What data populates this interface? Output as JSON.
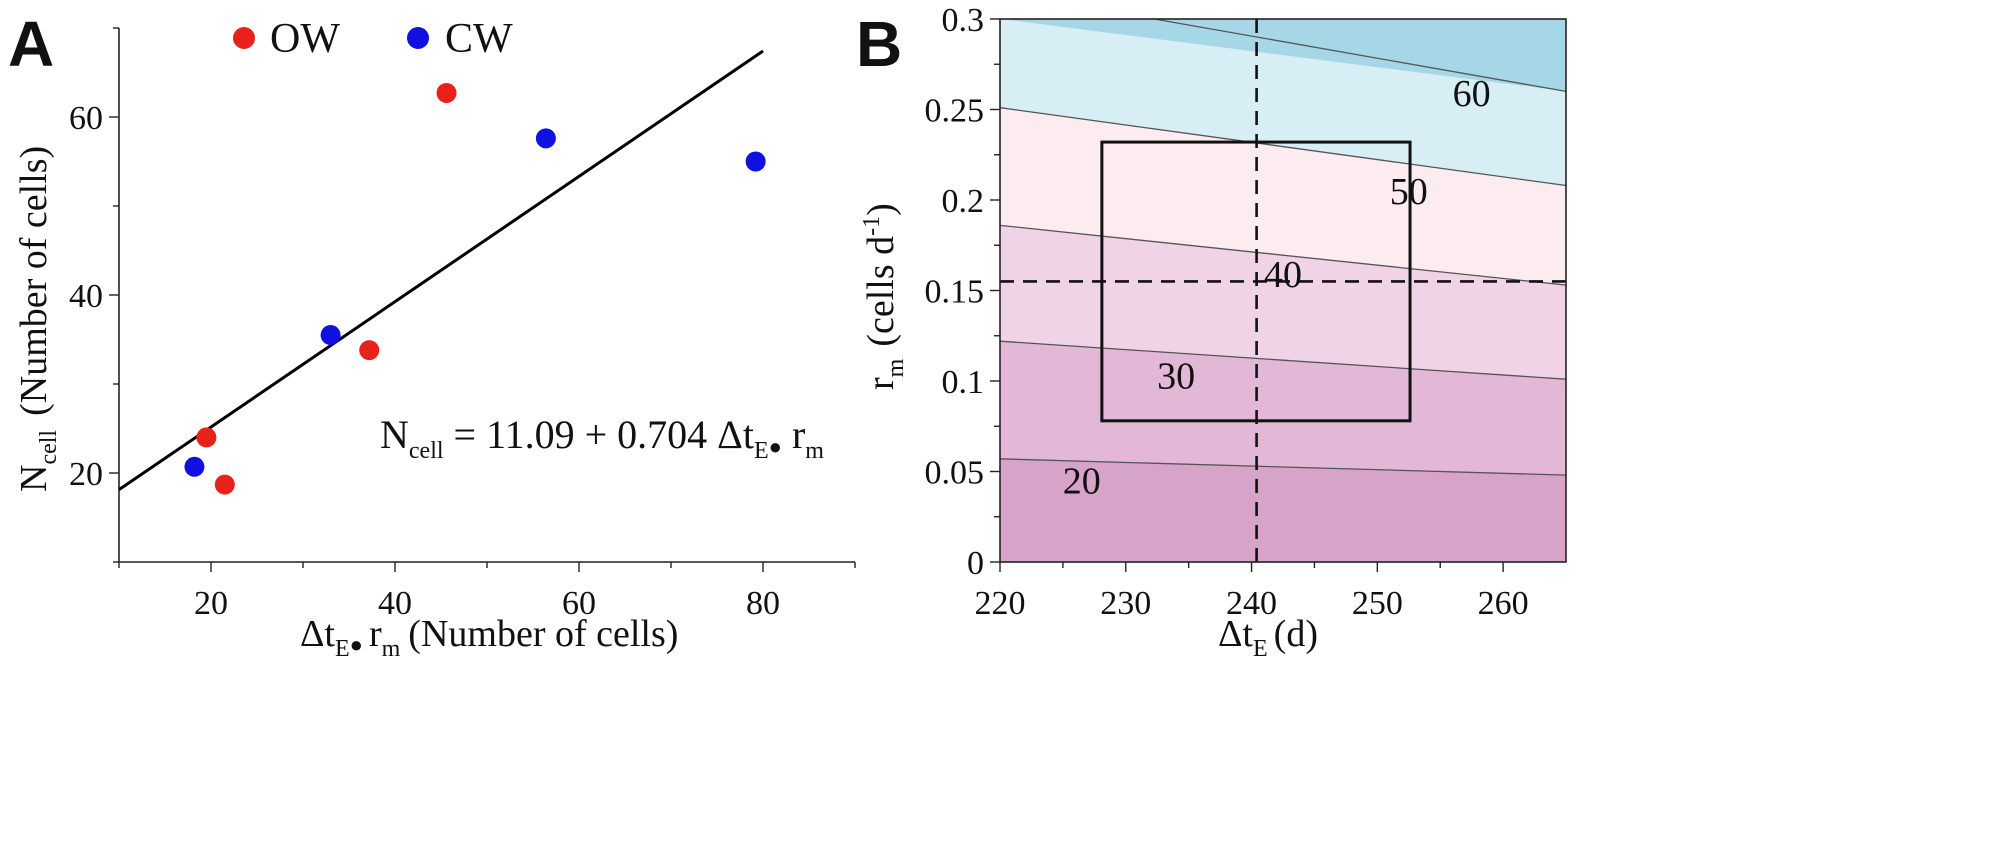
{
  "chart_data": [
    {
      "panel": "A",
      "type": "scatter",
      "xlabel": {
        "main": "Δt",
        "sub_e": "E",
        "bullet": "●",
        "r": "r",
        "sub_m": "m",
        "rest": "(Number of cells)"
      },
      "ylabel": {
        "main": "N",
        "sub": "cell",
        "rest": "(Number of cells)"
      },
      "xlim": [
        10,
        90
      ],
      "ylim": [
        10,
        70
      ],
      "xticks": [
        20,
        40,
        60,
        80
      ],
      "yticks": [
        20,
        40,
        60
      ],
      "legend": [
        {
          "label": "OW",
          "color": "#e8211b"
        },
        {
          "label": "CW",
          "color": "#1010e0"
        }
      ],
      "series": [
        {
          "name": "OW",
          "color": "#e8211b",
          "points": [
            [
              19.5,
              24
            ],
            [
              21.5,
              18.7
            ],
            [
              37.2,
              33.8
            ],
            [
              45.6,
              62.7
            ]
          ]
        },
        {
          "name": "CW",
          "color": "#1010e0",
          "points": [
            [
              18.2,
              20.7
            ],
            [
              33,
              35.5
            ],
            [
              56.4,
              57.6
            ],
            [
              79.2,
              55
            ]
          ]
        }
      ],
      "fit": {
        "intercept": 11.09,
        "slope": 0.704,
        "x_range": [
          10,
          80
        ]
      },
      "equation": {
        "lhs": "N",
        "lhs_sub": "cell",
        "rhs_prefix": " = 11.09 + 0.704 Δt",
        "sub_e": "E",
        "bullet": "●",
        "r": " r",
        "sub_m": "m"
      }
    },
    {
      "panel": "B",
      "type": "contour",
      "xlabel": {
        "main": "Δt",
        "sub": "E",
        "unit": "(d)"
      },
      "ylabel": {
        "main": "r",
        "sub": "m",
        "unit_pre": "(cells d",
        "unit_sup": "-1",
        "unit_post": ")"
      },
      "xlim": [
        220,
        265
      ],
      "ylim": [
        0,
        0.3
      ],
      "xticks": [
        220,
        230,
        240,
        250,
        260
      ],
      "yticks": [
        0,
        0.05,
        0.1,
        0.15,
        0.2,
        0.25,
        0.3
      ],
      "ytick_labels": [
        "0",
        "0.05",
        "0.1",
        "0.15",
        "0.2",
        "0.25",
        "0.3"
      ],
      "contour_levels": [
        20,
        30,
        40,
        50,
        60
      ],
      "contour_lines": [
        {
          "level": 20,
          "y_at_xmin": 0.057,
          "y_at_xmax": 0.048
        },
        {
          "level": 30,
          "y_at_xmin": 0.122,
          "y_at_xmax": 0.101
        },
        {
          "level": 40,
          "y_at_xmin": 0.186,
          "y_at_xmax": 0.153
        },
        {
          "level": 50,
          "y_at_xmin": 0.251,
          "y_at_xmax": 0.208
        },
        {
          "level": 60,
          "y_at_xmin": 0.315,
          "y_at_xmax": 0.26
        }
      ],
      "label_positions": [
        {
          "level": "20",
          "x": 226.5,
          "y": 0.045
        },
        {
          "level": "30",
          "x": 234,
          "y": 0.103
        },
        {
          "level": "40",
          "x": 242.5,
          "y": 0.159
        },
        {
          "level": "50",
          "x": 252.5,
          "y": 0.205
        },
        {
          "level": "60",
          "x": 257.5,
          "y": 0.259
        }
      ],
      "band_colors": [
        "#d8a3c8",
        "#e2b8d6",
        "#f0d3e6",
        "#fcecf0",
        "#d6eef4",
        "#a6d7e6"
      ],
      "reference_lines": {
        "x": 240.4,
        "y": 0.155
      },
      "box": {
        "x": [
          228.1,
          252.6
        ],
        "y": [
          0.078,
          0.232
        ]
      }
    }
  ]
}
